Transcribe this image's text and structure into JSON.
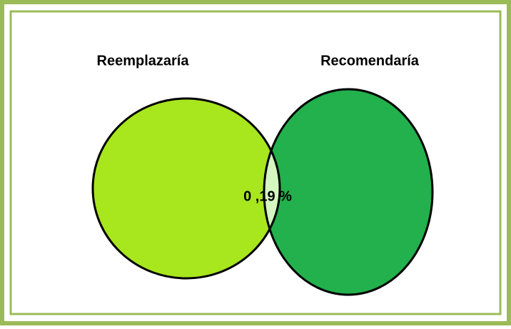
{
  "sets": [
    {
      "label": "Reemplazaría"
    },
    {
      "label": "Recomendaría"
    }
  ],
  "intersection": {
    "label": "0 ,19 %"
  }
}
